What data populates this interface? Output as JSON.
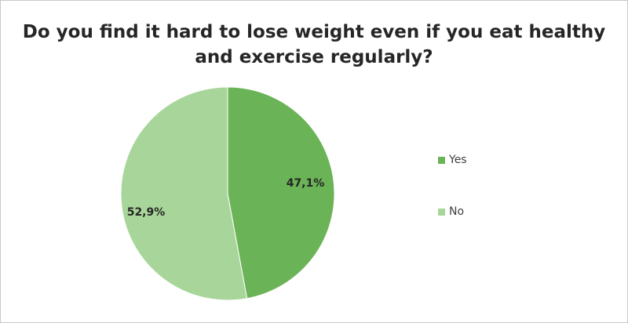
{
  "chart_data": {
    "type": "pie",
    "title": "Do you find it hard to lose weight even if you eat healthy and exercise regularly?",
    "categories": [
      "Yes",
      "No"
    ],
    "values": [
      47.1,
      52.9
    ],
    "data_labels": [
      "47,1%",
      "52,9%"
    ],
    "colors": [
      "#6ab356",
      "#a8d69a"
    ],
    "legend": {
      "position": "right",
      "entries": [
        "Yes",
        "No"
      ]
    }
  }
}
